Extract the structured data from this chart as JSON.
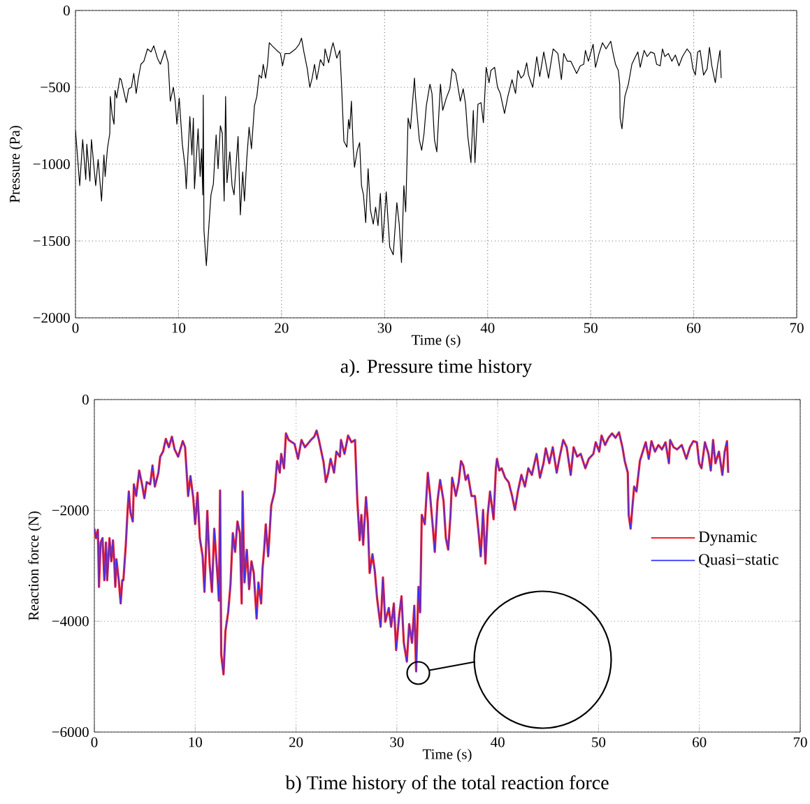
{
  "chart_data": [
    {
      "type": "line",
      "title": "a). Pressure time history",
      "xlabel": "Time (s)",
      "ylabel": "Pressure (Pa)",
      "color": "#000000",
      "grid": true,
      "xlim": [
        0,
        70
      ],
      "ylim": [
        -2000,
        0
      ],
      "xticks": [
        0,
        10,
        20,
        30,
        40,
        50,
        60,
        70
      ],
      "yticks": [
        {
          "value": -2000,
          "label": "−2000"
        },
        {
          "value": -1500,
          "label": "−1500"
        },
        {
          "value": -1000,
          "label": "−1000"
        },
        {
          "value": -500,
          "label": "−500"
        },
        0
      ],
      "x": [
        0,
        0.14,
        0.41,
        0.7,
        1.0,
        1.1,
        1.4,
        1.55,
        1.96,
        2.2,
        2.53,
        2.76,
        2.88,
        3.1,
        3.33,
        3.38,
        3.56,
        3.74,
        3.84,
        4.0,
        4.3,
        4.43,
        4.93,
        5.16,
        5.43,
        5.66,
        5.89,
        6.1,
        6.35,
        6.64,
        6.99,
        7.33,
        7.6,
        7.95,
        8.24,
        8.68,
        9.0,
        9.2,
        9.5,
        9.68,
        9.84,
        10.07,
        10.37,
        10.64,
        10.75,
        11.1,
        11.3,
        11.44,
        11.55,
        11.9,
        12.1,
        12.24,
        12.35,
        12.4,
        12.47,
        12.7,
        12.92,
        13.15,
        13.38,
        13.65,
        13.84,
        14.06,
        14.25,
        14.43,
        14.57,
        14.7,
        14.98,
        15.2,
        15.39,
        15.78,
        16.0,
        16.23,
        16.4,
        16.62,
        16.85,
        17.08,
        17.37,
        17.6,
        17.83,
        18.06,
        18.22,
        18.45,
        18.64,
        18.81,
        19.09,
        19.54,
        19.89,
        20.1,
        20.34,
        20.8,
        21.37,
        21.71,
        21.94,
        22.17,
        22.5,
        22.74,
        22.97,
        23.2,
        23.42,
        23.77,
        24.1,
        24.22,
        24.57,
        24.84,
        25.0,
        25.36,
        25.66,
        25.82,
        26.05,
        26.34,
        26.5,
        26.62,
        26.78,
        26.96,
        27.08,
        27.35,
        27.58,
        27.76,
        27.95,
        28.17,
        28.4,
        28.63,
        28.9,
        29.13,
        29.36,
        29.59,
        29.82,
        30.16,
        30.5,
        30.84,
        31.19,
        31.42,
        31.64,
        31.87,
        32.05,
        32.28,
        32.51,
        32.9,
        33.0,
        33.37,
        33.6,
        33.83,
        34.05,
        34.4,
        34.6,
        34.84,
        35.07,
        35.42,
        35.64,
        35.99,
        36.33,
        36.56,
        36.9,
        37.08,
        37.35,
        37.63,
        37.86,
        38.08,
        38.38,
        38.61,
        38.77,
        39.06,
        39.36,
        39.59,
        39.86,
        40.14,
        40.32,
        40.68,
        40.96,
        41.23,
        41.64,
        41.96,
        42.37,
        42.71,
        42.94,
        43.24,
        43.51,
        43.79,
        43.97,
        44.38,
        44.77,
        45.06,
        45.45,
        45.91,
        46.36,
        46.82,
        47.16,
        47.39,
        47.73,
        48.07,
        48.64,
        48.99,
        49.33,
        49.49,
        49.78,
        50.24,
        50.47,
        50.81,
        51.15,
        51.49,
        51.95,
        52.18,
        52.41,
        52.68,
        52.82,
        52.86,
        53.04,
        53.32,
        53.66,
        54.0,
        54.35,
        54.58,
        54.81,
        55.19,
        55.49,
        55.83,
        56.18,
        56.4,
        56.75,
        56.97,
        57.2,
        57.54,
        57.88,
        58.22,
        58.57,
        58.91,
        59.36,
        59.7,
        59.93,
        60.16,
        60.39,
        60.62,
        60.96,
        61.3,
        61.53,
        61.76,
        62.1,
        62.33,
        62.56,
        62.67
      ],
      "values": [
        -780,
        -900,
        -1140,
        -840,
        -1100,
        -870,
        -1110,
        -840,
        -1140,
        -970,
        -1240,
        -940,
        -1080,
        -900,
        -800,
        -560,
        -680,
        -740,
        -520,
        -570,
        -440,
        -450,
        -600,
        -510,
        -500,
        -410,
        -540,
        -440,
        -350,
        -330,
        -250,
        -270,
        -230,
        -310,
        -350,
        -260,
        -340,
        -590,
        -500,
        -590,
        -740,
        -570,
        -870,
        -1020,
        -1160,
        -690,
        -940,
        -700,
        -1160,
        -770,
        -1080,
        -900,
        -1200,
        -550,
        -1430,
        -1660,
        -1430,
        -1200,
        -1130,
        -810,
        -1030,
        -750,
        -800,
        -1240,
        -560,
        -1120,
        -920,
        -1140,
        -1200,
        -820,
        -1330,
        -1050,
        -1240,
        -970,
        -760,
        -900,
        -620,
        -560,
        -420,
        -440,
        -350,
        -440,
        -350,
        -210,
        -230,
        -260,
        -280,
        -360,
        -280,
        -280,
        -250,
        -220,
        -180,
        -270,
        -380,
        -500,
        -440,
        -350,
        -450,
        -320,
        -360,
        -250,
        -340,
        -250,
        -210,
        -310,
        -260,
        -480,
        -850,
        -890,
        -710,
        -770,
        -590,
        -900,
        -1020,
        -910,
        -860,
        -1140,
        -1200,
        -1380,
        -1030,
        -1300,
        -1390,
        -1280,
        -1400,
        -1190,
        -1510,
        -1180,
        -1540,
        -1590,
        -1250,
        -1390,
        -1640,
        -1140,
        -1310,
        -700,
        -770,
        -440,
        -560,
        -840,
        -910,
        -800,
        -620,
        -480,
        -540,
        -840,
        -920,
        -480,
        -650,
        -570,
        -510,
        -380,
        -410,
        -480,
        -590,
        -510,
        -610,
        -820,
        -990,
        -650,
        -990,
        -610,
        -600,
        -730,
        -370,
        -470,
        -390,
        -370,
        -500,
        -540,
        -670,
        -560,
        -450,
        -540,
        -390,
        -440,
        -420,
        -340,
        -420,
        -500,
        -300,
        -430,
        -270,
        -440,
        -250,
        -280,
        -450,
        -280,
        -330,
        -330,
        -410,
        -360,
        -350,
        -260,
        -330,
        -220,
        -370,
        -280,
        -210,
        -250,
        -200,
        -280,
        -350,
        -390,
        -480,
        -700,
        -770,
        -560,
        -480,
        -350,
        -300,
        -270,
        -370,
        -260,
        -300,
        -270,
        -280,
        -350,
        -360,
        -250,
        -300,
        -280,
        -330,
        -290,
        -360,
        -300,
        -250,
        -280,
        -380,
        -420,
        -270,
        -260,
        -420,
        -380,
        -240,
        -360,
        -470,
        -350,
        -260,
        -440
      ]
    },
    {
      "type": "line",
      "title": "b)  Time history of the total reaction force",
      "xlabel": "Time (s)",
      "ylabel": "Reaction force (N)",
      "grid": true,
      "legend": "right",
      "xlim": [
        0,
        70
      ],
      "ylim": [
        -6000,
        0
      ],
      "xticks": [
        0,
        10,
        20,
        30,
        40,
        50,
        60,
        70
      ],
      "yticks": [
        {
          "value": -6000,
          "label": "−6000"
        },
        {
          "value": -4000,
          "label": "−4000"
        },
        {
          "value": -2000,
          "label": "−2000"
        },
        0
      ],
      "x": [
        0,
        0.16,
        0.35,
        0.46,
        0.62,
        0.81,
        0.99,
        1.15,
        1.27,
        1.5,
        1.68,
        1.85,
        1.96,
        2.08,
        2.19,
        2.42,
        2.61,
        2.77,
        2.88,
        3.12,
        3.3,
        3.42,
        3.58,
        3.81,
        3.92,
        4.15,
        4.45,
        4.73,
        4.96,
        5.19,
        5.54,
        5.77,
        6.0,
        6.35,
        6.53,
        6.81,
        7.09,
        7.39,
        7.69,
        7.96,
        8.31,
        8.77,
        9.0,
        9.3,
        9.53,
        9.81,
        10.0,
        10.23,
        10.46,
        10.74,
        10.92,
        11.2,
        11.43,
        11.66,
        11.89,
        12.24,
        12.35,
        12.47,
        12.58,
        12.81,
        13.0,
        13.27,
        13.5,
        13.73,
        13.96,
        14.19,
        14.43,
        14.61,
        14.7,
        14.89,
        15.12,
        15.35,
        15.58,
        15.81,
        16.09,
        16.27,
        16.54,
        16.68,
        16.84,
        17.0,
        17.24,
        17.54,
        17.88,
        18.12,
        18.39,
        18.53,
        18.81,
        19.0,
        19.27,
        19.85,
        20.2,
        20.54,
        20.89,
        21.47,
        21.81,
        22.04,
        22.27,
        22.73,
        22.96,
        23.2,
        23.43,
        23.77,
        24.0,
        24.35,
        24.46,
        24.81,
        25.16,
        25.5,
        25.85,
        26.08,
        26.31,
        26.48,
        26.66,
        26.94,
        27.12,
        27.3,
        27.58,
        27.81,
        28.04,
        28.39,
        28.62,
        28.85,
        29.2,
        29.43,
        29.7,
        29.93,
        30.23,
        30.46,
        30.69,
        30.99,
        31.22,
        31.5,
        31.73,
        31.91,
        32.14,
        32.31,
        32.47,
        32.77,
        33.07,
        33.3,
        33.58,
        33.76,
        34.03,
        34.29,
        34.63,
        34.86,
        35.09,
        35.32,
        35.48,
        35.67,
        35.85,
        36.13,
        36.36,
        36.59,
        36.82,
        37.05,
        37.4,
        37.74,
        38.09,
        38.32,
        38.55,
        38.78,
        39.01,
        39.24,
        39.59,
        39.82,
        39.93,
        40.16,
        40.39,
        40.74,
        41.08,
        41.43,
        41.71,
        42.0,
        42.35,
        42.7,
        43.04,
        43.39,
        43.85,
        44.19,
        44.54,
        44.77,
        45.12,
        45.46,
        45.85,
        46.15,
        46.5,
        46.84,
        47.24,
        47.53,
        47.88,
        48.23,
        48.69,
        49.03,
        49.49,
        49.72,
        50.07,
        50.3,
        50.65,
        50.99,
        51.34,
        51.68,
        52.03,
        52.37,
        52.6,
        52.9,
        52.99,
        53.18,
        53.53,
        53.76,
        54.1,
        54.45,
        54.68,
        54.98,
        55.25,
        55.6,
        55.94,
        56.29,
        56.64,
        56.98,
        57.1,
        57.44,
        57.79,
        58.25,
        58.71,
        59.06,
        59.4,
        59.75,
        59.98,
        60.21,
        60.55,
        60.9,
        61.13,
        61.36,
        61.59,
        61.94,
        62.28,
        62.51,
        62.74,
        62.86
      ],
      "series": [
        {
          "name": "Dynamic",
          "color": "#ff2020",
          "values": [
            -2330,
            -2500,
            -2350,
            -3380,
            -2580,
            -2500,
            -3260,
            -2580,
            -3260,
            -2500,
            -2920,
            -2540,
            -2880,
            -3380,
            -2880,
            -3260,
            -3680,
            -3260,
            -3260,
            -2620,
            -1990,
            -1660,
            -2040,
            -2200,
            -1530,
            -1740,
            -1280,
            -1530,
            -1780,
            -1490,
            -1530,
            -1190,
            -1570,
            -1320,
            -1030,
            -940,
            -710,
            -860,
            -670,
            -900,
            -1030,
            -750,
            -860,
            -1740,
            -1380,
            -1780,
            -2250,
            -1680,
            -2500,
            -2830,
            -3470,
            -2010,
            -2960,
            -3470,
            -2330,
            -3260,
            -3630,
            -1640,
            -4600,
            -4960,
            -4180,
            -3840,
            -3340,
            -2410,
            -2750,
            -2200,
            -2410,
            -3680,
            -1660,
            -3300,
            -2710,
            -3420,
            -2920,
            -3130,
            -3950,
            -3300,
            -3680,
            -3050,
            -2710,
            -2250,
            -2830,
            -1910,
            -1660,
            -1110,
            -1320,
            -980,
            -1240,
            -610,
            -730,
            -800,
            -1070,
            -730,
            -860,
            -730,
            -670,
            -560,
            -730,
            -1130,
            -1490,
            -1320,
            -1070,
            -1320,
            -940,
            -1030,
            -730,
            -980,
            -650,
            -770,
            -730,
            -1830,
            -2540,
            -2080,
            -2620,
            -1760,
            -2200,
            -3130,
            -2790,
            -3090,
            -3590,
            -4100,
            -3210,
            -4010,
            -3760,
            -4100,
            -3680,
            -4520,
            -3890,
            -3550,
            -4390,
            -4730,
            -4050,
            -4390,
            -3720,
            -4900,
            -3380,
            -3840,
            -2080,
            -2250,
            -1320,
            -1740,
            -2330,
            -2750,
            -1830,
            -1450,
            -1830,
            -2500,
            -2710,
            -2080,
            -1410,
            -1570,
            -1740,
            -1490,
            -1110,
            -1190,
            -1450,
            -1360,
            -1740,
            -1740,
            -2370,
            -2830,
            -1990,
            -2960,
            -2080,
            -1660,
            -2160,
            -1240,
            -1070,
            -1280,
            -1240,
            -1410,
            -1490,
            -1740,
            -1990,
            -1660,
            -1360,
            -1570,
            -1240,
            -1360,
            -980,
            -1410,
            -1150,
            -880,
            -1150,
            -860,
            -1320,
            -1030,
            -730,
            -860,
            -1360,
            -860,
            -1030,
            -980,
            -1240,
            -1070,
            -980,
            -770,
            -940,
            -650,
            -820,
            -690,
            -610,
            -690,
            -590,
            -860,
            -1110,
            -1320,
            -2080,
            -2330,
            -1570,
            -1660,
            -1110,
            -900,
            -770,
            -1070,
            -750,
            -940,
            -820,
            -900,
            -770,
            -1150,
            -730,
            -860,
            -900,
            -820,
            -1070,
            -860,
            -750,
            -770,
            -1150,
            -1240,
            -770,
            -980,
            -1280,
            -730,
            -1150,
            -940,
            -1360,
            -940,
            -750,
            -1320
          ]
        },
        {
          "name": "Quasi−static",
          "color": "#3030ff",
          "values": [
            -2330,
            -2500,
            -2350,
            -3380,
            -2580,
            -2500,
            -3260,
            -2580,
            -3260,
            -2500,
            -2920,
            -2540,
            -2880,
            -3380,
            -2880,
            -3260,
            -3680,
            -3260,
            -3260,
            -2620,
            -1990,
            -1660,
            -2040,
            -2200,
            -1530,
            -1740,
            -1280,
            -1530,
            -1780,
            -1490,
            -1530,
            -1190,
            -1570,
            -1320,
            -1030,
            -940,
            -710,
            -860,
            -670,
            -900,
            -1030,
            -750,
            -860,
            -1740,
            -1380,
            -1780,
            -2250,
            -1680,
            -2500,
            -2830,
            -3470,
            -2010,
            -2960,
            -3470,
            -2330,
            -3260,
            -3630,
            -1640,
            -4600,
            -4960,
            -4180,
            -3840,
            -3340,
            -2410,
            -2750,
            -2200,
            -2410,
            -3680,
            -1660,
            -3300,
            -2710,
            -3420,
            -2920,
            -3130,
            -3950,
            -3300,
            -3680,
            -3050,
            -2710,
            -2250,
            -2830,
            -1910,
            -1660,
            -1110,
            -1320,
            -980,
            -1240,
            -610,
            -730,
            -800,
            -1070,
            -730,
            -860,
            -730,
            -670,
            -560,
            -730,
            -1130,
            -1490,
            -1320,
            -1070,
            -1320,
            -940,
            -1030,
            -730,
            -980,
            -650,
            -770,
            -730,
            -1830,
            -2540,
            -2080,
            -2620,
            -1760,
            -2200,
            -3130,
            -2790,
            -3090,
            -3590,
            -4100,
            -3210,
            -4010,
            -3760,
            -4100,
            -3680,
            -4520,
            -3890,
            -3550,
            -4390,
            -4730,
            -4050,
            -4390,
            -3720,
            -4920,
            -3380,
            -3840,
            -2080,
            -2250,
            -1320,
            -1740,
            -2330,
            -2750,
            -1830,
            -1450,
            -1830,
            -2500,
            -2710,
            -2080,
            -1410,
            -1570,
            -1740,
            -1490,
            -1110,
            -1190,
            -1450,
            -1360,
            -1740,
            -1740,
            -2370,
            -2830,
            -1990,
            -2960,
            -2080,
            -1660,
            -2160,
            -1240,
            -1070,
            -1280,
            -1240,
            -1410,
            -1490,
            -1740,
            -1990,
            -1660,
            -1360,
            -1570,
            -1240,
            -1360,
            -980,
            -1410,
            -1150,
            -880,
            -1150,
            -860,
            -1320,
            -1030,
            -730,
            -860,
            -1360,
            -860,
            -1030,
            -980,
            -1240,
            -1070,
            -980,
            -770,
            -940,
            -650,
            -820,
            -690,
            -610,
            -690,
            -590,
            -860,
            -1110,
            -1320,
            -2080,
            -2330,
            -1570,
            -1660,
            -1110,
            -900,
            -770,
            -1070,
            -750,
            -940,
            -820,
            -900,
            -770,
            -1150,
            -730,
            -860,
            -900,
            -820,
            -1070,
            -860,
            -750,
            -770,
            -1150,
            -1240,
            -770,
            -980,
            -1280,
            -730,
            -1150,
            -940,
            -1360,
            -940,
            -750,
            -1320
          ]
        }
      ]
    }
  ]
}
